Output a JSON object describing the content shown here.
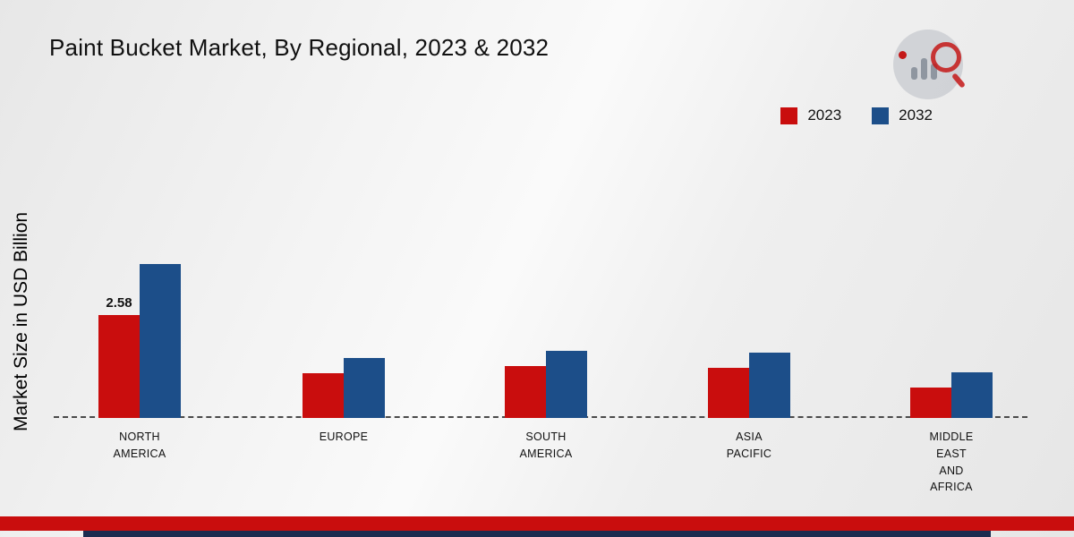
{
  "title": "Paint Bucket Market, By Regional, 2023 & 2032",
  "ylabel": "Market Size in USD Billion",
  "legend": [
    {
      "label": "2023",
      "color": "#c90d0d"
    },
    {
      "label": "2032",
      "color": "#1c4e89"
    }
  ],
  "colors": {
    "accent_red": "#c90d0d",
    "accent_blue": "#1c4e89",
    "footer_navy": "#1b2b4f"
  },
  "chart_data": {
    "type": "bar",
    "categories": [
      "North America",
      "Europe",
      "South America",
      "Asia Pacific",
      "Middle East and Africa"
    ],
    "category_lines": [
      [
        "NORTH",
        "AMERICA"
      ],
      [
        "EUROPE"
      ],
      [
        "SOUTH",
        "AMERICA"
      ],
      [
        "ASIA",
        "PACIFIC"
      ],
      [
        "MIDDLE",
        "EAST",
        "AND",
        "AFRICA"
      ]
    ],
    "series": [
      {
        "name": "2023",
        "color": "#c90d0d",
        "values": [
          2.58,
          1.12,
          1.3,
          1.26,
          0.76
        ]
      },
      {
        "name": "2032",
        "color": "#1c4e89",
        "values": [
          3.86,
          1.5,
          1.68,
          1.64,
          1.14
        ]
      }
    ],
    "annotations": [
      {
        "category_index": 0,
        "series_index": 0,
        "text": "2.58"
      }
    ],
    "title": "Paint Bucket Market, By Regional, 2023 & 2032",
    "xlabel": "",
    "ylabel": "Market Size in USD Billion",
    "ylim": [
      0,
      4.5
    ],
    "grid": false,
    "baseline": "dashed",
    "legend_position": "top-right"
  }
}
